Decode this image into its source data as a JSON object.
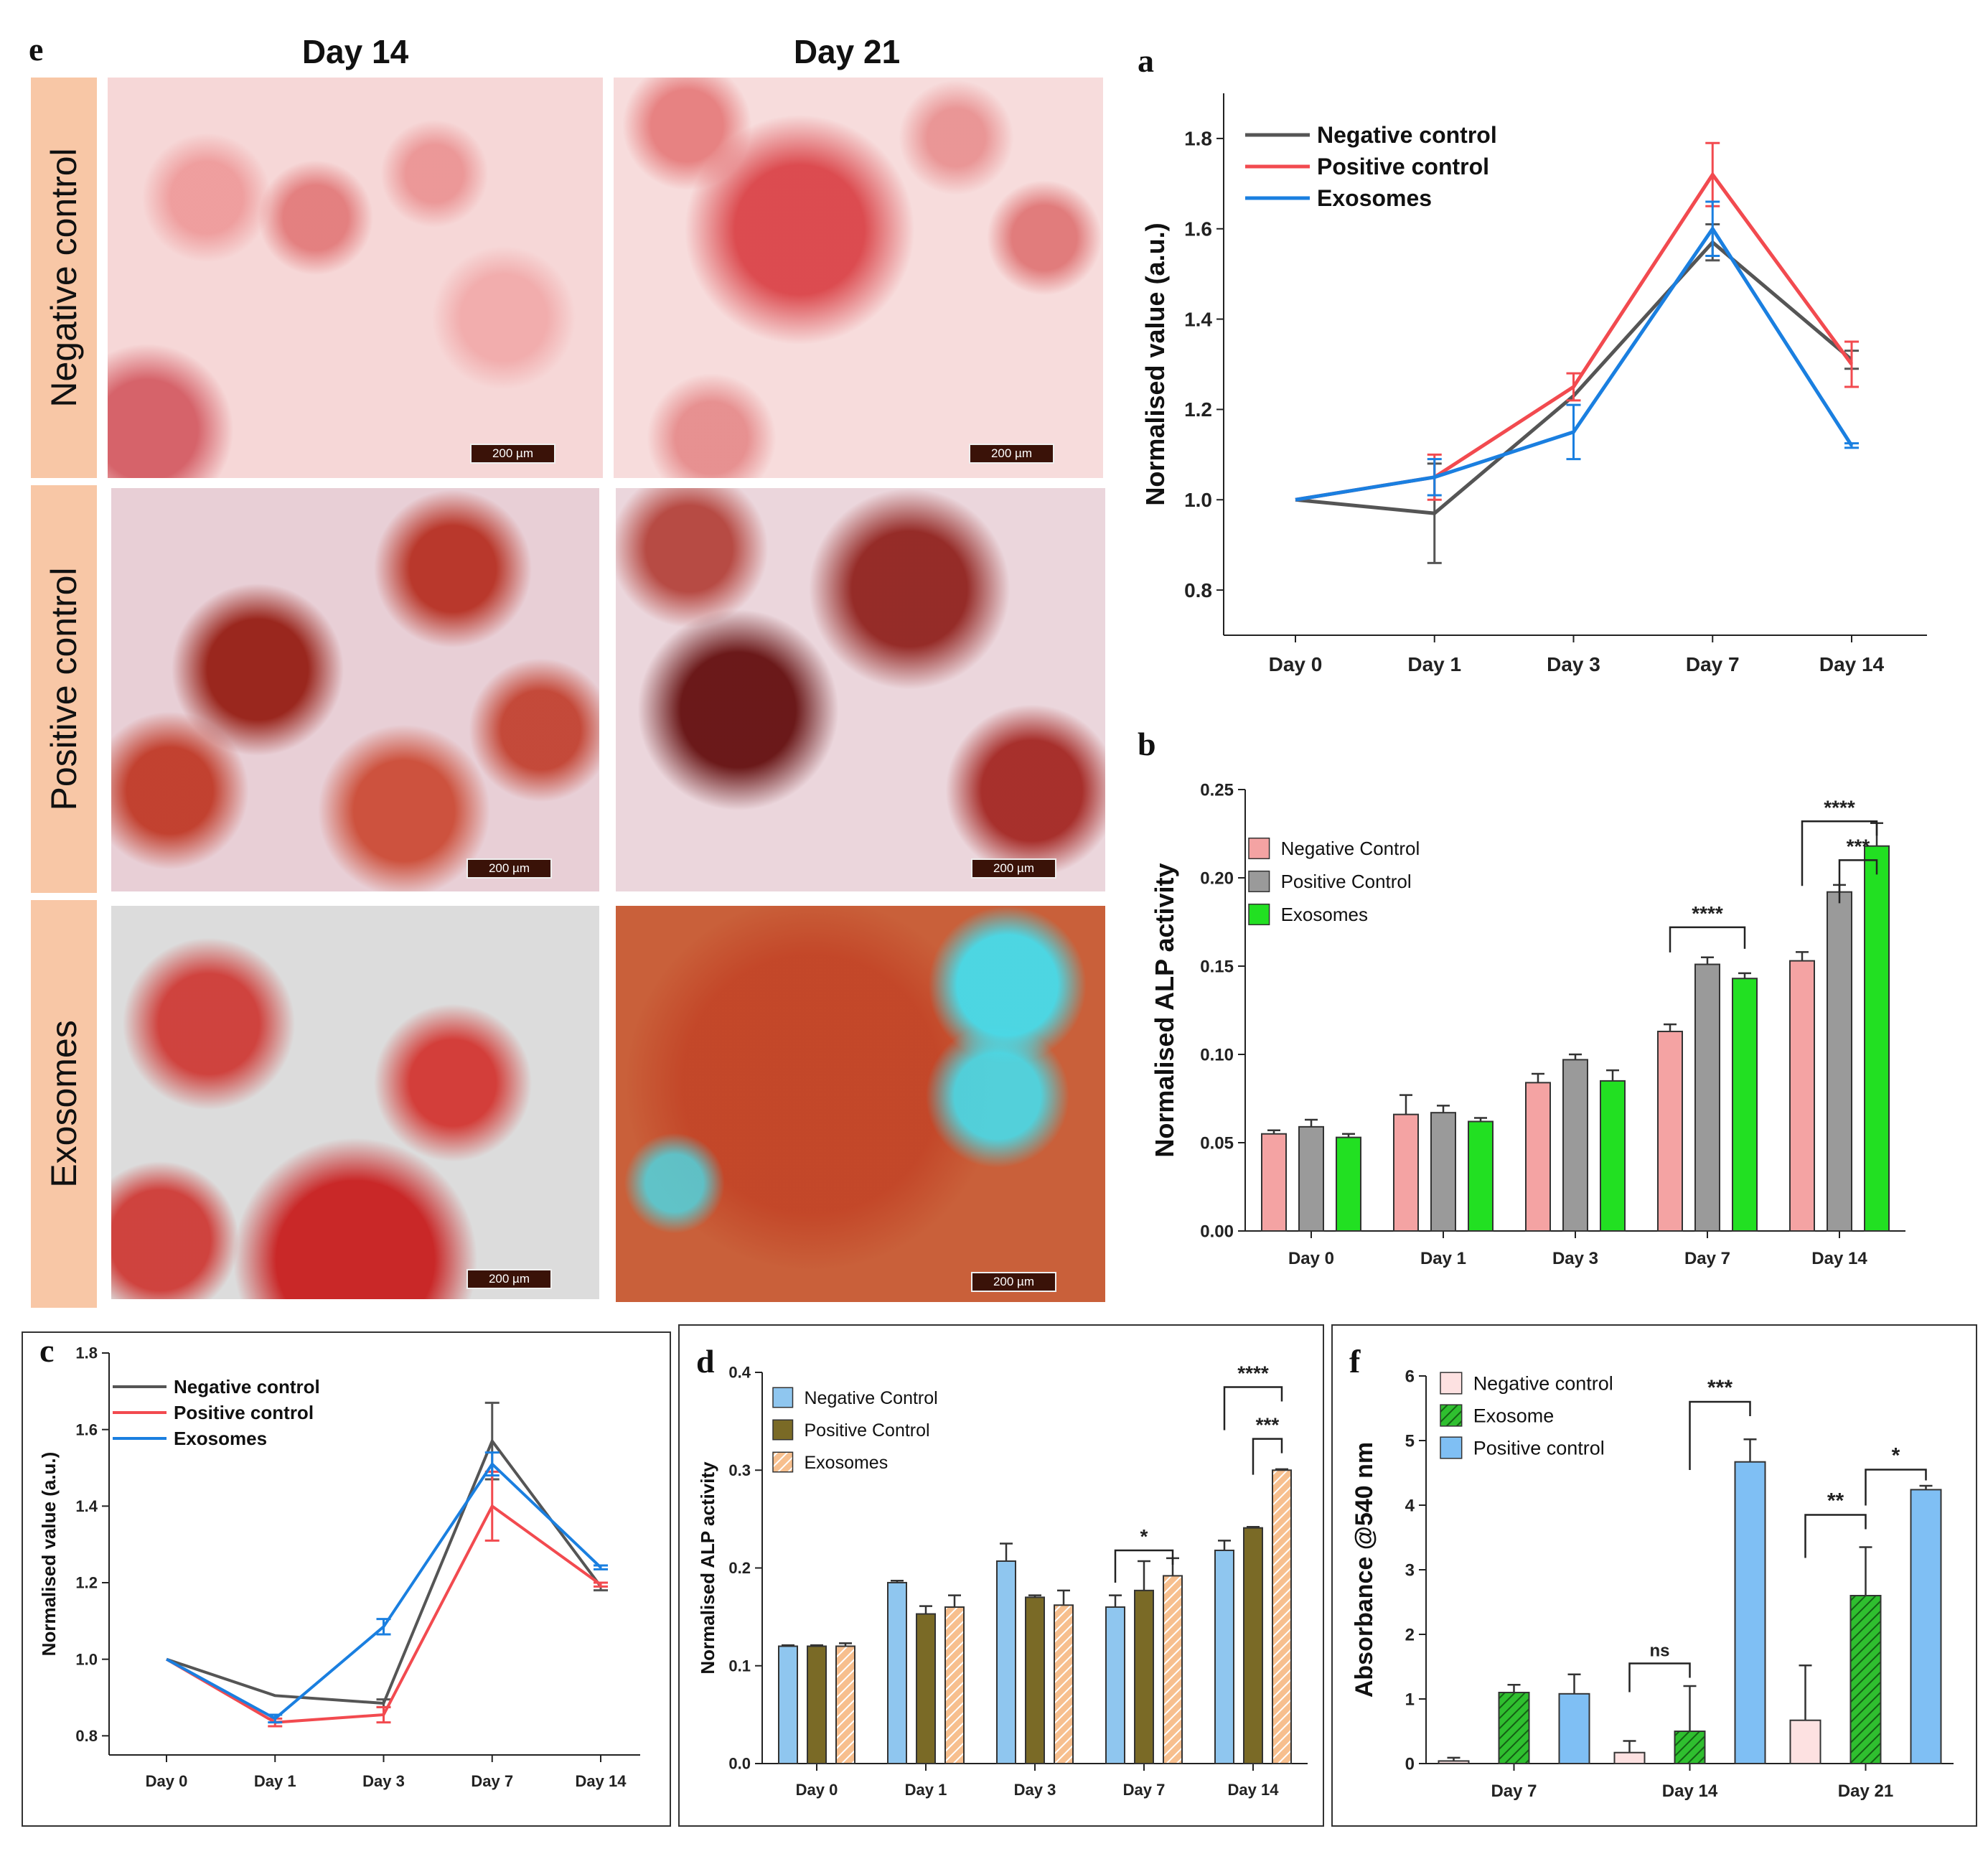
{
  "figure": {
    "panel_e": {
      "letter": "e",
      "columns": [
        "Day 14",
        "Day 21"
      ],
      "rows": [
        "Negative control",
        "Positive control",
        "Exosomes"
      ],
      "scale_bar": "200 µm"
    },
    "colors": {
      "negative_line": "#555555",
      "positive_line": "#f24a4f",
      "exosomes_line": "#1a7fe0",
      "b_negative": "#f4a3a3",
      "b_positive": "#9a9a9a",
      "b_exosomes": "#22e022",
      "d_negative": "#8fc6ef",
      "d_positive": "#7a6a26",
      "d_exosomes": "#f7bf8e",
      "f_negative": "#fde1e1",
      "f_positive": "#7fbff4",
      "f_exosome": "#2fbf2f"
    }
  },
  "chart_data": [
    {
      "panel": "a",
      "type": "line",
      "title": "",
      "ylabel": "Normalised value (a.u.)",
      "xlabel": "",
      "categories": [
        "Day 0",
        "Day 1",
        "Day 3",
        "Day 7",
        "Day 14"
      ],
      "ylim": [
        0.7,
        1.9
      ],
      "yticks": [
        "0.8",
        "1.0",
        "1.2",
        "1.4",
        "1.6",
        "1.8"
      ],
      "legend": "top-left",
      "series": [
        {
          "name": "Negative control",
          "values": [
            1.0,
            0.97,
            1.23,
            1.57,
            1.31
          ],
          "errors": [
            0,
            0.11,
            0,
            0.04,
            0.02
          ]
        },
        {
          "name": "Positive control",
          "values": [
            1.0,
            1.05,
            1.25,
            1.72,
            1.3
          ],
          "errors": [
            0,
            0.05,
            0.03,
            0.07,
            0.05
          ]
        },
        {
          "name": "Exosomes",
          "values": [
            1.0,
            1.05,
            1.15,
            1.6,
            1.12
          ],
          "errors": [
            0,
            0.04,
            0.06,
            0.06,
            0.005
          ]
        }
      ]
    },
    {
      "panel": "b",
      "type": "bar",
      "title": "",
      "ylabel": "Normalised ALP activity",
      "xlabel": "",
      "categories": [
        "Day 0",
        "Day 1",
        "Day 3",
        "Day 7",
        "Day 14"
      ],
      "ylim": [
        0,
        0.25
      ],
      "yticks": [
        "0.00",
        "0.05",
        "0.10",
        "0.15",
        "0.20",
        "0.25"
      ],
      "legend": "top-left",
      "series": [
        {
          "name": "Negative Control",
          "values": [
            0.055,
            0.066,
            0.084,
            0.113,
            0.153
          ],
          "errors": [
            0.002,
            0.011,
            0.005,
            0.004,
            0.005
          ]
        },
        {
          "name": "Positive Control",
          "values": [
            0.059,
            0.067,
            0.097,
            0.151,
            0.192
          ],
          "errors": [
            0.004,
            0.004,
            0.003,
            0.004,
            0.004
          ]
        },
        {
          "name": "Exosomes",
          "values": [
            0.053,
            0.062,
            0.085,
            0.143,
            0.218
          ],
          "errors": [
            0.002,
            0.002,
            0.006,
            0.003,
            0.013
          ]
        }
      ],
      "significance": [
        "****",
        "****",
        "***"
      ]
    },
    {
      "panel": "c",
      "type": "line",
      "title": "",
      "ylabel": "Normalised value (a.u.)",
      "xlabel": "",
      "categories": [
        "Day 0",
        "Day 1",
        "Day 3",
        "Day 7",
        "Day 14"
      ],
      "ylim": [
        0.75,
        1.8
      ],
      "yticks": [
        "0.8",
        "1.0",
        "1.2",
        "1.4",
        "1.6",
        "1.8"
      ],
      "legend": "top-left",
      "series": [
        {
          "name": "Negative control",
          "values": [
            1.0,
            0.905,
            0.885,
            1.57,
            1.19
          ],
          "errors": [
            0,
            0,
            0.01,
            0.1,
            0.01
          ]
        },
        {
          "name": "Positive control",
          "values": [
            1.0,
            0.835,
            0.855,
            1.4,
            1.195
          ],
          "errors": [
            0,
            0.01,
            0.02,
            0.09,
            0.005
          ]
        },
        {
          "name": "Exosomes",
          "values": [
            1.0,
            0.845,
            1.085,
            1.51,
            1.24
          ],
          "errors": [
            0,
            0.01,
            0.02,
            0.03,
            0.005
          ]
        }
      ]
    },
    {
      "panel": "d",
      "type": "bar",
      "title": "",
      "ylabel": "Normalised ALP activity",
      "xlabel": "",
      "categories": [
        "Day 0",
        "Day 1",
        "Day 3",
        "Day 7",
        "Day 14"
      ],
      "ylim": [
        0,
        0.4
      ],
      "yticks": [
        "0.0",
        "0.1",
        "0.2",
        "0.3",
        "0.4"
      ],
      "legend": "top-left",
      "series": [
        {
          "name": "Negative Control",
          "values": [
            0.12,
            0.185,
            0.207,
            0.16,
            0.218
          ],
          "errors": [
            0.001,
            0.002,
            0.018,
            0.012,
            0.01
          ]
        },
        {
          "name": "Positive Control",
          "values": [
            0.12,
            0.153,
            0.17,
            0.177,
            0.241
          ],
          "errors": [
            0.001,
            0.008,
            0.002,
            0.03,
            0.001
          ]
        },
        {
          "name": "Exosomes",
          "values": [
            0.12,
            0.16,
            0.162,
            0.192,
            0.3
          ],
          "errors": [
            0.003,
            0.012,
            0.015,
            0.018,
            0.001
          ]
        }
      ],
      "significance": [
        "*",
        "****",
        "***"
      ]
    },
    {
      "panel": "f",
      "type": "bar",
      "title": "",
      "ylabel": "Absorbance @540 nm",
      "xlabel": "",
      "categories": [
        "Day 7",
        "Day 14",
        "Day 21"
      ],
      "ylim": [
        0,
        6
      ],
      "yticks": [
        "0",
        "1",
        "2",
        "3",
        "4",
        "5",
        "6"
      ],
      "legend": "top-left",
      "series": [
        {
          "name": "Negative control",
          "values": [
            0.04,
            0.17,
            0.67
          ],
          "errors": [
            0.05,
            0.18,
            0.85
          ]
        },
        {
          "name": "Exosome",
          "values": [
            1.1,
            0.5,
            2.6
          ],
          "errors": [
            0.12,
            0.7,
            0.75
          ]
        },
        {
          "name": "Positive control",
          "values": [
            1.08,
            4.67,
            4.24
          ],
          "errors": [
            0.3,
            0.35,
            0.06
          ]
        }
      ],
      "significance": [
        "ns",
        "***",
        "**",
        "*"
      ]
    }
  ]
}
